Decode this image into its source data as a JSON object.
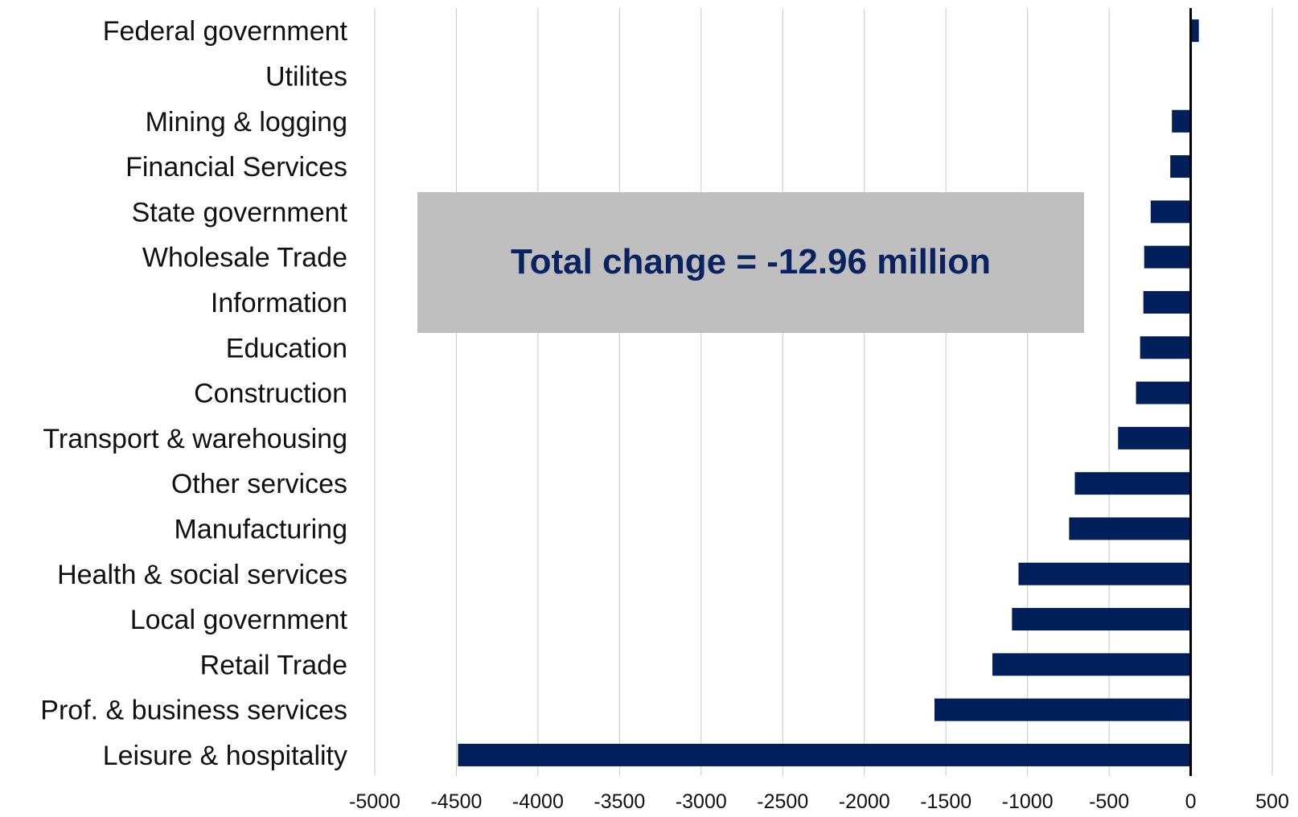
{
  "chart_data": {
    "type": "bar",
    "orientation": "horizontal",
    "title": "",
    "xlabel": "",
    "ylabel": "",
    "xlim": [
      -5000,
      500
    ],
    "x_ticks": [
      -5000,
      -4500,
      -4000,
      -3500,
      -3000,
      -2500,
      -2000,
      -1500,
      -1000,
      -500,
      0,
      500
    ],
    "grid": true,
    "bar_color": "#001f5b",
    "categories": [
      "Federal government",
      "Utilites",
      "Mining & logging",
      "Financial Services",
      "State government",
      "Wholesale Trade",
      "Information",
      "Education",
      "Construction",
      "Transport & warehousing",
      "Other services",
      "Manufacturing",
      "Health & social services",
      "Local government",
      "Retail Trade",
      "Prof. & business services",
      "Leisure & hospitality"
    ],
    "values": [
      50,
      0,
      -115,
      -125,
      -245,
      -285,
      -290,
      -310,
      -335,
      -445,
      -710,
      -745,
      -1055,
      -1095,
      -1215,
      -1570,
      -4490
    ],
    "annotations": [
      {
        "text": "Total change = -12.96 million",
        "background": "#bfbfbf",
        "color": "#0b2260"
      }
    ]
  }
}
